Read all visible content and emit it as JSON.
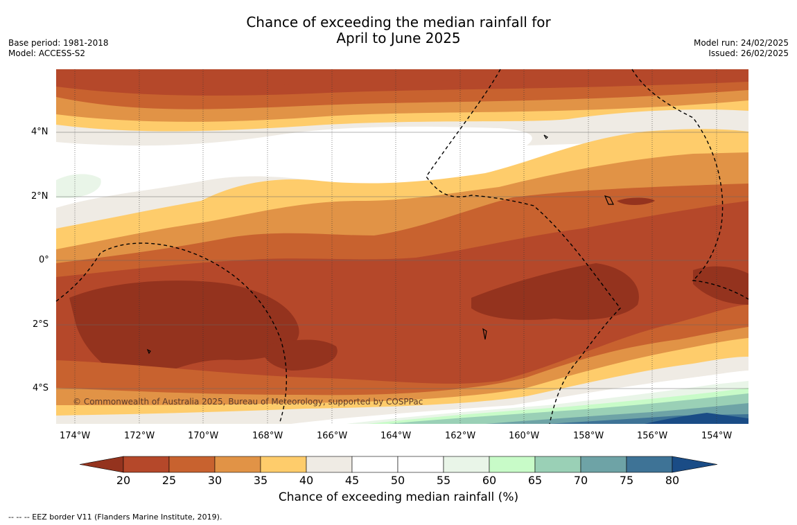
{
  "title": {
    "line1": "Chance of exceeding the median rainfall for",
    "line2": "April to June 2025"
  },
  "meta": {
    "base_period": "Base period: 1981-2018",
    "model": "Model: ACCESS-S2",
    "model_run": "Model run: 24/02/2025",
    "issued": "Issued: 26/02/2025"
  },
  "map": {
    "copyright": "© Commonwealth of Australia 2025, Bureau of Meteorology, supported by COSPPac",
    "lat_ticks": [
      "4°N",
      "2°N",
      "0°",
      "2°S",
      "4°S"
    ],
    "lon_ticks": [
      "174°W",
      "172°W",
      "170°W",
      "168°W",
      "166°W",
      "164°W",
      "162°W",
      "160°W",
      "158°W",
      "156°W",
      "154°W"
    ]
  },
  "colorbar": {
    "title": "Chance of exceeding median rainfall (%)",
    "labels": [
      "20",
      "25",
      "30",
      "35",
      "40",
      "45",
      "50",
      "55",
      "60",
      "65",
      "70",
      "75",
      "80"
    ],
    "colors": [
      "#b5482a",
      "#c8622f",
      "#e19346",
      "#fecc6b",
      "#efebe4",
      "#ffffff",
      "#ffffff",
      "#e9f5e8",
      "#c8fbc8",
      "#9ad0b6",
      "#6ea3a6",
      "#3e7396"
    ],
    "under_color": "#94331e",
    "over_color": "#1a4c86"
  },
  "footer": {
    "legend": "--  --  -- EEZ border V11 (Flanders Marine Institute, 2019)."
  }
}
